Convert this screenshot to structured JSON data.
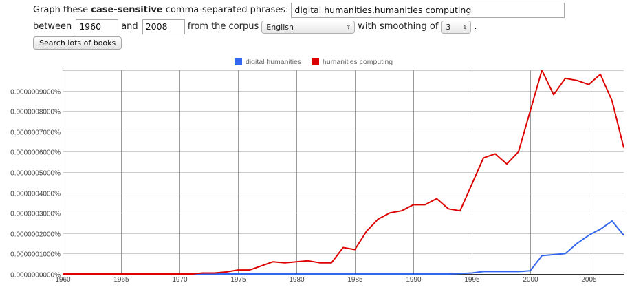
{
  "form": {
    "graph_prefix": "Graph these",
    "graph_bold": "case-sensitive",
    "graph_suffix": "comma-separated phrases:",
    "phrases_value": "digital humanities,humanities computing",
    "between_label": "between",
    "year_start": "1960",
    "and_label": "and",
    "year_end": "2008",
    "corpus_label": "from the corpus",
    "corpus_value": "English",
    "smoothing_label": "with smoothing of",
    "smoothing_value": "3",
    "period": ".",
    "search_button": "Search lots of books"
  },
  "chart_data": {
    "type": "line",
    "title": "",
    "xlabel": "",
    "ylabel": "",
    "xlim": [
      1960,
      2008
    ],
    "ylim": [
      0,
      1e-08
    ],
    "x_ticks": [
      "1960",
      "1965",
      "1970",
      "1975",
      "1980",
      "1985",
      "1990",
      "1995",
      "2000",
      "2005"
    ],
    "x_tick_values": [
      1960,
      1965,
      1970,
      1975,
      1980,
      1985,
      1990,
      1995,
      2000,
      2005
    ],
    "y_ticks": [
      "0.0000000000%",
      "0.0000001000%",
      "0.0000002000%",
      "0.0000003000%",
      "0.0000004000%",
      "0.0000005000%",
      "0.0000006000%",
      "0.0000007000%",
      "0.0000008000%",
      "0.0000009000%"
    ],
    "y_tick_values": [
      0,
      1e-09,
      2e-09,
      3e-09,
      4e-09,
      5e-09,
      6e-09,
      7e-09,
      8e-09,
      9e-09
    ],
    "grid": true,
    "legend_position": "top-center",
    "x": [
      1960,
      1961,
      1962,
      1963,
      1964,
      1965,
      1966,
      1967,
      1968,
      1969,
      1970,
      1971,
      1972,
      1973,
      1974,
      1975,
      1976,
      1977,
      1978,
      1979,
      1980,
      1981,
      1982,
      1983,
      1984,
      1985,
      1986,
      1987,
      1988,
      1989,
      1990,
      1991,
      1992,
      1993,
      1994,
      1995,
      1996,
      1997,
      1998,
      1999,
      2000,
      2001,
      2002,
      2003,
      2004,
      2005,
      2006,
      2007,
      2008
    ],
    "series": [
      {
        "name": "digital humanities",
        "color": "#3366ee",
        "values": [
          0,
          0,
          0,
          0,
          0,
          0,
          0,
          0,
          0,
          0,
          0,
          0,
          0,
          0,
          0,
          0,
          0,
          0,
          0,
          0,
          0,
          0,
          0,
          0,
          0,
          0,
          0,
          0,
          0,
          0,
          0,
          0,
          0,
          0,
          2e-11,
          5e-11,
          1.2e-10,
          1.2e-10,
          1.2e-10,
          1.2e-10,
          1.6e-10,
          9e-10,
          9.5e-10,
          1e-09,
          1.5e-09,
          1.9e-09,
          2.2e-09,
          2.6e-09,
          1.9e-09
        ]
      },
      {
        "name": "humanities computing",
        "color": "#dd0000",
        "values": [
          0,
          0,
          0,
          0,
          0,
          0,
          0,
          0,
          0,
          0,
          0,
          0,
          5e-11,
          5e-11,
          1e-10,
          2e-10,
          2e-10,
          4e-10,
          6e-10,
          5.5e-10,
          6e-10,
          6.5e-10,
          5.5e-10,
          5.5e-10,
          1.3e-09,
          1.2e-09,
          2.1e-09,
          2.7e-09,
          3e-09,
          3.1e-09,
          3.4e-09,
          3.4e-09,
          3.7e-09,
          3.2e-09,
          3.1e-09,
          4.4e-09,
          5.7e-09,
          5.9e-09,
          5.4e-09,
          6e-09,
          8e-09,
          1e-08,
          8.8e-09,
          9.6e-09,
          9.5e-09,
          9.3e-09,
          9.8e-09,
          8.5e-09,
          6.2e-09
        ]
      }
    ]
  }
}
